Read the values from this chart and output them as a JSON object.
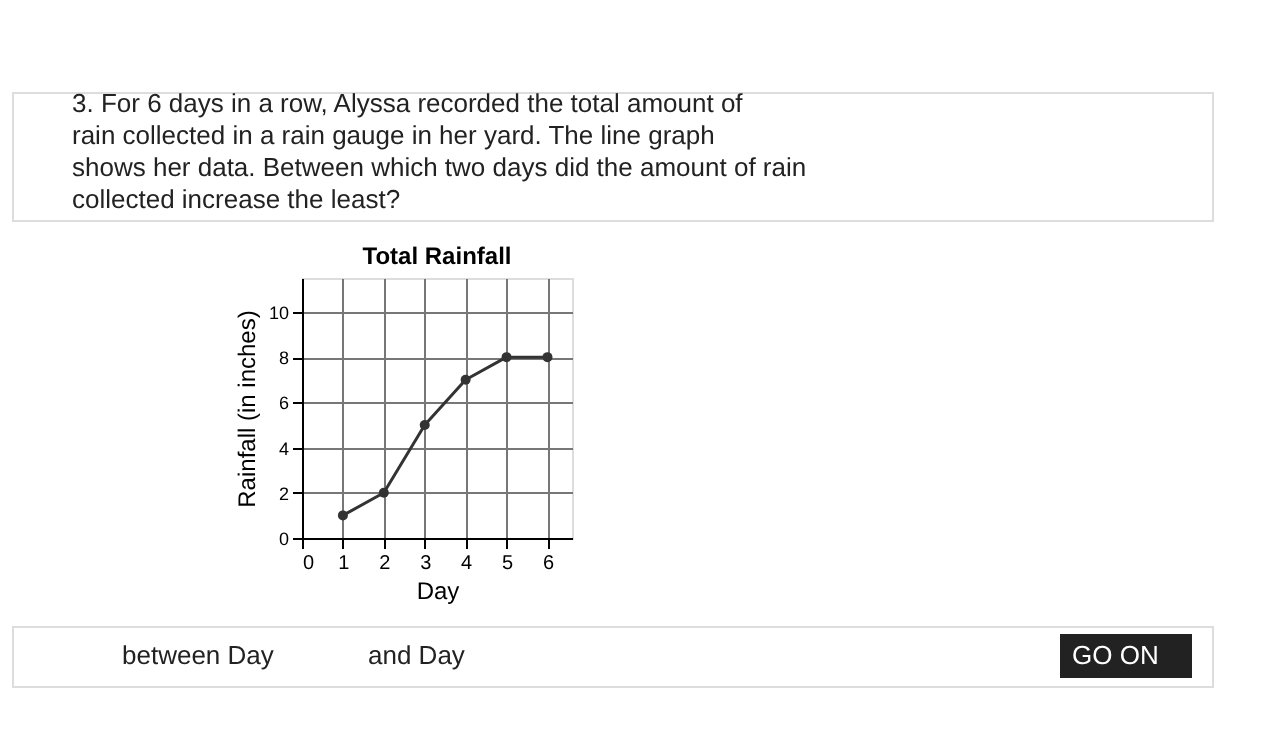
{
  "chart_data": {
    "type": "line",
    "title": "Total Rainfall",
    "xlabel": "Day",
    "ylabel": "Rainfall (in inches)",
    "x": [
      1,
      2,
      3,
      4,
      5,
      6
    ],
    "series": [
      {
        "color": "#333333",
        "values": [
          1,
          2,
          5,
          7,
          8,
          8
        ]
      }
    ],
    "xlim": [
      0,
      6.6
    ],
    "xticks": [
      0,
      1,
      2,
      3,
      4,
      5,
      6
    ],
    "ylim": [
      0,
      11.5
    ],
    "yticks": [
      0,
      2,
      4,
      6,
      8,
      10
    ],
    "grid": true,
    "marker": "circle",
    "line_style": "solid",
    "legend": false,
    "annotations": [
      "3. For 6 days in a row, Alyssa recorded the total amount of rain collected in a rain gauge in her yard. The line graph shows her data. Between which two days did the amount of rain collected increase the least?",
      "between Day",
      "and Day",
      "GO ON"
    ]
  }
}
